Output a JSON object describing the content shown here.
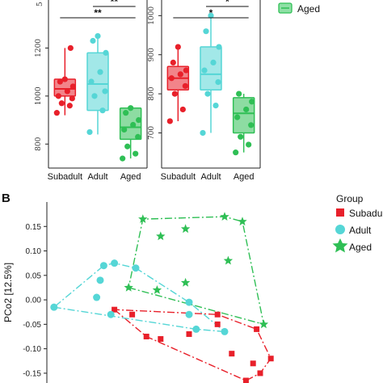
{
  "colors": {
    "subadult": "#e8202a",
    "adult": "#55d6d6",
    "aged": "#2fbf55"
  },
  "panel_a": {
    "legend_aged": "Aged",
    "left": {
      "yticks": [
        "800",
        "1000",
        "1200"
      ]
    },
    "right": {
      "yticks": [
        "700",
        "800",
        "900",
        "1000"
      ]
    }
  },
  "panel_b": {
    "label": "B",
    "ylabel": "PCo2 [12.5%]",
    "yticks": [
      "0.15",
      "0.10",
      "0.05",
      "0.00",
      "-0.05",
      "-0.10",
      "-0.15"
    ],
    "legend_title": "Group",
    "legend": [
      "Subadult",
      "Adult",
      "Aged"
    ]
  },
  "chart_data": [
    {
      "type": "box",
      "categories": [
        "Subadult",
        "Adult",
        "Aged"
      ],
      "ylim": [
        700,
        1400
      ],
      "boxes": [
        {
          "q1": 1000,
          "median": 1030,
          "q3": 1070,
          "whisker_low": 920,
          "whisker_high": 1200
        },
        {
          "q1": 940,
          "median": 1050,
          "q3": 1180,
          "whisker_low": 840,
          "whisker_high": 1250
        },
        {
          "q1": 820,
          "median": 870,
          "q3": 950,
          "whisker_low": 740,
          "whisker_high": 960
        }
      ],
      "points": [
        [
          930,
          960,
          970,
          990,
          1000,
          1020,
          1040,
          1060,
          1070,
          1200
        ],
        [
          850,
          940,
          1000,
          1020,
          1060,
          1100,
          1180,
          1230,
          1250
        ],
        [
          740,
          760,
          790,
          830,
          860,
          880,
          900,
          930,
          950
        ]
      ],
      "significance": [
        {
          "pair": [
            1,
            3
          ],
          "label": "**"
        },
        {
          "pair": [
            2,
            3
          ],
          "label": "**"
        }
      ]
    },
    {
      "type": "box",
      "categories": [
        "Subadult",
        "Adult",
        "Aged"
      ],
      "ylim": [
        610,
        1040
      ],
      "boxes": [
        {
          "q1": 810,
          "median": 840,
          "q3": 870,
          "whisker_low": 730,
          "whisker_high": 920
        },
        {
          "q1": 810,
          "median": 850,
          "q3": 920,
          "whisker_low": 700,
          "whisker_high": 1000
        },
        {
          "q1": 700,
          "median": 750,
          "q3": 790,
          "whisker_low": 650,
          "whisker_high": 800
        }
      ],
      "points": [
        [
          730,
          760,
          800,
          820,
          840,
          850,
          860,
          880,
          920
        ],
        [
          700,
          770,
          800,
          830,
          860,
          880,
          920,
          960,
          1000
        ],
        [
          650,
          670,
          690,
          720,
          740,
          760,
          780,
          800
        ]
      ],
      "significance": [
        {
          "pair": [
            1,
            3
          ],
          "label": "*"
        },
        {
          "pair": [
            2,
            3
          ],
          "label": "*"
        }
      ]
    },
    {
      "type": "scatter",
      "ylabel": "PCo2 [12.5%]",
      "xlim": [
        -0.3,
        0.5
      ],
      "ylim": [
        -0.17,
        0.2
      ],
      "series": [
        {
          "name": "Subadult",
          "points": [
            [
              -0.11,
              -0.02
            ],
            [
              -0.06,
              -0.03
            ],
            [
              0.18,
              -0.03
            ],
            [
              0.18,
              -0.05
            ],
            [
              0.29,
              -0.06
            ],
            [
              -0.02,
              -0.075
            ],
            [
              0.02,
              -0.08
            ],
            [
              0.1,
              -0.07
            ],
            [
              0.22,
              -0.11
            ],
            [
              0.28,
              -0.13
            ],
            [
              0.33,
              -0.12
            ],
            [
              0.3,
              -0.15
            ],
            [
              0.26,
              -0.165
            ]
          ]
        },
        {
          "name": "Adult",
          "points": [
            [
              -0.28,
              -0.015
            ],
            [
              -0.14,
              0.07
            ],
            [
              -0.11,
              0.075
            ],
            [
              -0.15,
              0.04
            ],
            [
              -0.16,
              0.005
            ],
            [
              -0.05,
              0.065
            ],
            [
              -0.12,
              -0.03
            ],
            [
              0.1,
              -0.005
            ],
            [
              0.1,
              -0.03
            ],
            [
              0.12,
              -0.06
            ],
            [
              0.2,
              -0.065
            ]
          ]
        },
        {
          "name": "Aged",
          "points": [
            [
              -0.03,
              0.165
            ],
            [
              0.2,
              0.17
            ],
            [
              0.25,
              0.16
            ],
            [
              0.09,
              0.145
            ],
            [
              0.02,
              0.13
            ],
            [
              0.21,
              0.08
            ],
            [
              0.09,
              0.035
            ],
            [
              -0.07,
              0.025
            ],
            [
              0.01,
              0.02
            ],
            [
              0.31,
              -0.05
            ]
          ]
        }
      ]
    }
  ]
}
